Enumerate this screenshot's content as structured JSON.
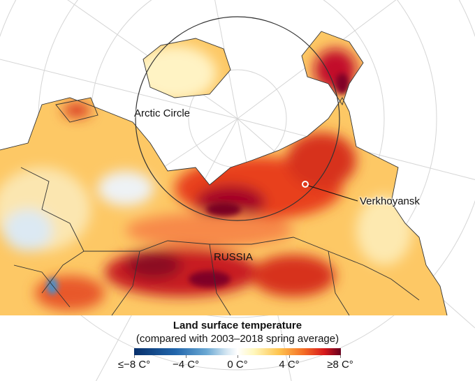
{
  "map": {
    "labels": {
      "arctic_circle": "Arctic Circle",
      "verkhoyansk": "Verkhoyansk",
      "russia": "RUSSIA"
    },
    "marker_color": "#ffffff"
  },
  "legend": {
    "title": "Land surface temperature",
    "subtitle": "(compared with 2003–2018 spring average)",
    "ticks": [
      "≤−8 C°",
      "−4 C°",
      "0 C°",
      "4 C°",
      "≥8 C°"
    ],
    "colors": {
      "min": "#08306b",
      "zero": "#ffffff",
      "max": "#67001f"
    }
  }
}
